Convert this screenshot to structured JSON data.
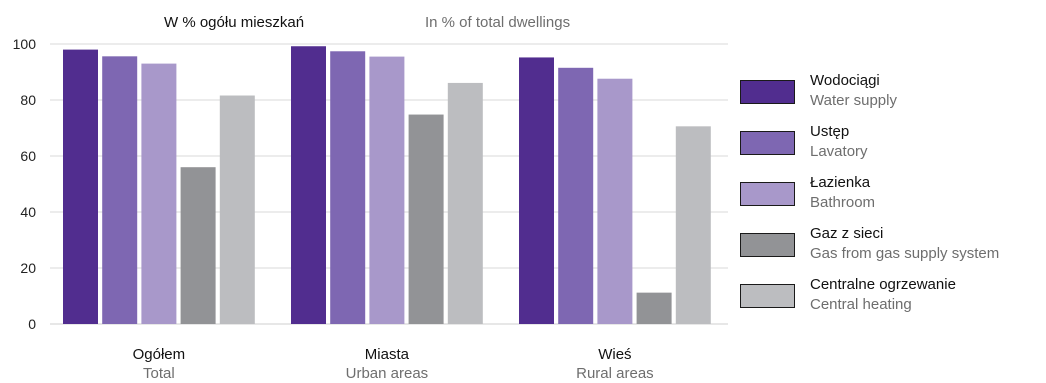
{
  "chart_data": {
    "type": "bar",
    "title": "W % ogółu mieszkań",
    "subtitle": "In % of total dwellings",
    "categories": [
      {
        "label": "Ogółem",
        "label_en": "Total"
      },
      {
        "label": "Miasta",
        "label_en": "Urban areas"
      },
      {
        "label": "Wieś",
        "label_en": "Rural areas"
      }
    ],
    "series": [
      {
        "name": "Wodociągi",
        "name_en": "Water supply",
        "color": "#512d8f",
        "values": [
          98.0,
          99.2,
          95.2
        ]
      },
      {
        "name": "Ustęp",
        "name_en": "Lavatory",
        "color": "#7e67b2",
        "values": [
          95.6,
          97.4,
          91.5
        ]
      },
      {
        "name": "Łazienka",
        "name_en": "Bathroom",
        "color": "#a898ca",
        "values": [
          93.0,
          95.5,
          87.6
        ]
      },
      {
        "name": "Gaz z sieci",
        "name_en": "Gas from gas supply system",
        "color": "#929396",
        "values": [
          56.0,
          74.8,
          11.2
        ]
      },
      {
        "name": "Centralne ogrzewanie",
        "name_en": "Central heating",
        "color": "#bcbdc0",
        "values": [
          81.6,
          86.1,
          70.6
        ]
      }
    ],
    "y_ticks": [
      "0",
      "20",
      "40",
      "60",
      "80",
      "100"
    ],
    "ylim": [
      0,
      100
    ],
    "grid": true,
    "legend_position": "right"
  }
}
